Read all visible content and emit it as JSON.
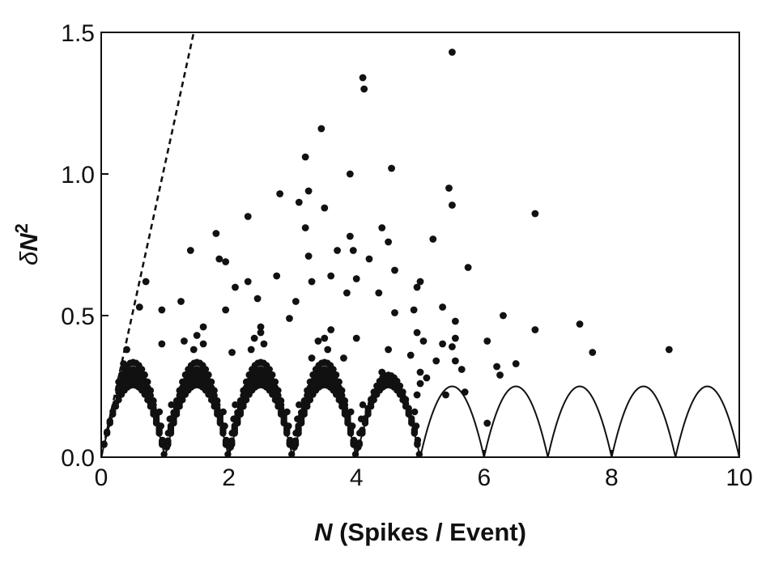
{
  "chart_data": {
    "type": "scatter",
    "title": "",
    "xlabel_var": "N",
    "xlabel_rest": " (Spikes / Event)",
    "ylabel_delta": "δ",
    "ylabel_var": "N",
    "ylabel_exp": "2",
    "xlim": [
      0,
      10
    ],
    "ylim": [
      0,
      1.5
    ],
    "x_ticks": [
      0,
      2,
      4,
      6,
      8,
      10
    ],
    "x_tick_labels": [
      "0",
      "2",
      "4",
      "6",
      "8",
      "10"
    ],
    "y_ticks": [
      0,
      0.5,
      1.0,
      1.5
    ],
    "y_tick_labels": [
      "0.0",
      "0.5",
      "1.0",
      "1.5"
    ],
    "grid": false,
    "legend": "none",
    "series": [
      {
        "style": "dashed-line",
        "description_key": "poisson",
        "points": [
          [
            0,
            0
          ],
          [
            1.45,
            1.5
          ]
        ]
      },
      {
        "style": "solid-line",
        "description_key": "minimum-variance",
        "function": "(N - floor(N)) * (1 - (N - floor(N)))",
        "x_range": [
          0,
          10
        ]
      },
      {
        "style": "dots",
        "description_key": "data",
        "points": [
          [
            5.5,
            1.43
          ],
          [
            4.1,
            1.34
          ],
          [
            4.12,
            1.3
          ],
          [
            3.45,
            1.16
          ],
          [
            3.2,
            1.06
          ],
          [
            4.55,
            1.02
          ],
          [
            3.9,
            1.0
          ],
          [
            5.45,
            0.95
          ],
          [
            3.25,
            0.94
          ],
          [
            2.8,
            0.93
          ],
          [
            3.1,
            0.9
          ],
          [
            5.5,
            0.89
          ],
          [
            3.5,
            0.88
          ],
          [
            6.8,
            0.86
          ],
          [
            2.3,
            0.85
          ],
          [
            3.2,
            0.81
          ],
          [
            4.4,
            0.81
          ],
          [
            1.8,
            0.79
          ],
          [
            3.9,
            0.78
          ],
          [
            5.2,
            0.77
          ],
          [
            1.4,
            0.73
          ],
          [
            4.5,
            0.76
          ],
          [
            3.7,
            0.73
          ],
          [
            3.95,
            0.73
          ],
          [
            3.25,
            0.71
          ],
          [
            4.2,
            0.7
          ],
          [
            1.85,
            0.7
          ],
          [
            1.95,
            0.69
          ],
          [
            5.75,
            0.67
          ],
          [
            4.6,
            0.66
          ],
          [
            2.75,
            0.64
          ],
          [
            3.6,
            0.64
          ],
          [
            4.0,
            0.63
          ],
          [
            2.3,
            0.62
          ],
          [
            0.7,
            0.62
          ],
          [
            3.3,
            0.62
          ],
          [
            4.95,
            0.6
          ],
          [
            5.0,
            0.62
          ],
          [
            2.1,
            0.6
          ],
          [
            3.85,
            0.58
          ],
          [
            4.35,
            0.58
          ],
          [
            2.45,
            0.56
          ],
          [
            3.05,
            0.55
          ],
          [
            1.25,
            0.55
          ],
          [
            4.9,
            0.52
          ],
          [
            0.6,
            0.53
          ],
          [
            1.95,
            0.52
          ],
          [
            4.6,
            0.51
          ],
          [
            0.95,
            0.52
          ],
          [
            5.35,
            0.53
          ],
          [
            2.95,
            0.49
          ],
          [
            6.3,
            0.5
          ],
          [
            5.55,
            0.48
          ],
          [
            7.5,
            0.47
          ],
          [
            2.5,
            0.46
          ],
          [
            1.6,
            0.46
          ],
          [
            3.6,
            0.45
          ],
          [
            6.8,
            0.45
          ],
          [
            4.95,
            0.44
          ],
          [
            5.55,
            0.42
          ],
          [
            5.05,
            0.41
          ],
          [
            5.35,
            0.4
          ],
          [
            8.9,
            0.38
          ],
          [
            5.5,
            0.39
          ],
          [
            6.05,
            0.41
          ],
          [
            5.25,
            0.34
          ],
          [
            0.4,
            0.38
          ],
          [
            7.7,
            0.37
          ],
          [
            4.0,
            0.42
          ],
          [
            3.3,
            0.35
          ],
          [
            5.55,
            0.34
          ],
          [
            4.85,
            0.36
          ],
          [
            2.05,
            0.37
          ],
          [
            1.6,
            0.4
          ],
          [
            0.95,
            0.4
          ],
          [
            3.8,
            0.35
          ],
          [
            6.2,
            0.32
          ],
          [
            6.5,
            0.33
          ],
          [
            5.65,
            0.31
          ],
          [
            5.0,
            0.3
          ],
          [
            6.25,
            0.29
          ],
          [
            4.4,
            0.3
          ],
          [
            5.0,
            0.26
          ],
          [
            4.95,
            0.22
          ],
          [
            5.1,
            0.28
          ],
          [
            5.7,
            0.23
          ],
          [
            5.4,
            0.22
          ],
          [
            6.05,
            0.12
          ],
          [
            2.5,
            0.44
          ],
          [
            3.5,
            0.42
          ],
          [
            1.5,
            0.43
          ],
          [
            0.35,
            0.33
          ],
          [
            1.45,
            0.38
          ],
          [
            2.4,
            0.42
          ],
          [
            3.4,
            0.41
          ],
          [
            4.5,
            0.38
          ],
          [
            1.3,
            0.41
          ],
          [
            2.55,
            0.4
          ],
          [
            3.55,
            0.38
          ],
          [
            2.35,
            0.38
          ]
        ]
      }
    ]
  }
}
